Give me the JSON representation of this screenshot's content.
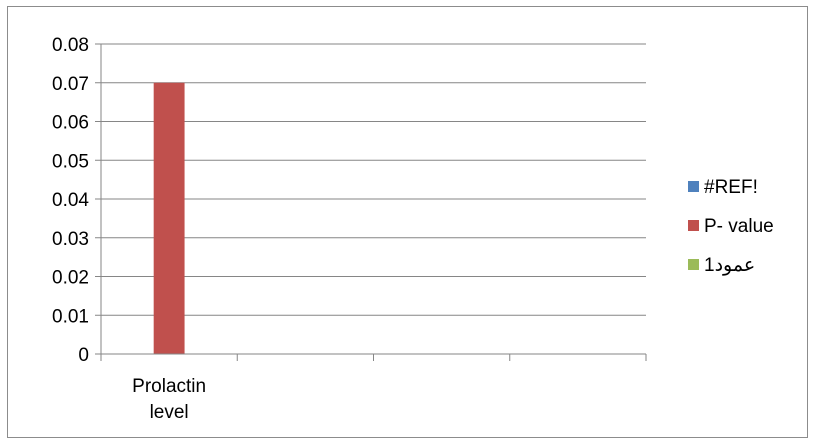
{
  "chart_data": {
    "type": "bar",
    "categories": [
      [
        "Prolactin",
        "level"
      ],
      "",
      "",
      ""
    ],
    "series": [
      {
        "name": "#REF!",
        "color": "#4f81bd",
        "values": [
          0,
          0,
          0,
          0
        ]
      },
      {
        "name": "P- value",
        "color": "#c0504d",
        "values": [
          0.07,
          0,
          0,
          0
        ]
      },
      {
        "name": "عمود1",
        "color": "#9bbb59",
        "values": [
          0,
          0,
          0,
          0
        ]
      }
    ],
    "y_ticks": [
      "0",
      "0.01",
      "0.02",
      "0.03",
      "0.04",
      "0.05",
      "0.06",
      "0.07",
      "0.08"
    ],
    "ylim": [
      0,
      0.08
    ],
    "grid": true,
    "legend_position": "right"
  }
}
